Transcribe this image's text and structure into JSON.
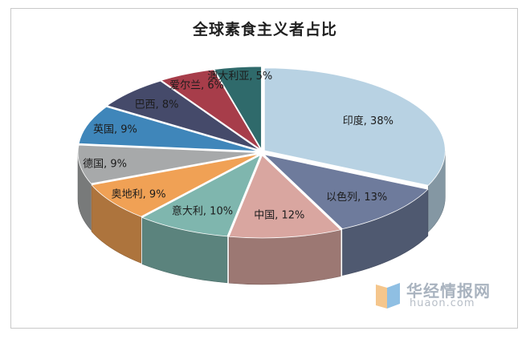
{
  "chart_data": {
    "type": "pie",
    "style": "3d-exploded",
    "title": "全球素食主义者占比",
    "categories": [
      "印度",
      "以色列",
      "中国",
      "意大利",
      "奥地利",
      "德国",
      "英国",
      "巴西",
      "爱尔兰",
      "澳大利亚"
    ],
    "values": [
      38,
      13,
      12,
      10,
      9,
      9,
      9,
      8,
      6,
      5
    ],
    "labels": [
      "印度, 38%",
      "以色列, 13%",
      "中国, 12%",
      "意大利, 10%",
      "奥地利, 9%",
      "德国, 9%",
      "英国, 9%",
      "巴西, 8%",
      "爱尔兰, 6%",
      "澳大利亚, 5%"
    ],
    "colors": [
      "#b8d2e3",
      "#6e7b9c",
      "#d9a6a0",
      "#7fb6ae",
      "#f0a155",
      "#a7a9aa",
      "#3f86ba",
      "#454a6a",
      "#a73d4a",
      "#2f6a6b"
    ]
  },
  "watermark": {
    "name": "华经情报网",
    "url": "huaon.com"
  }
}
